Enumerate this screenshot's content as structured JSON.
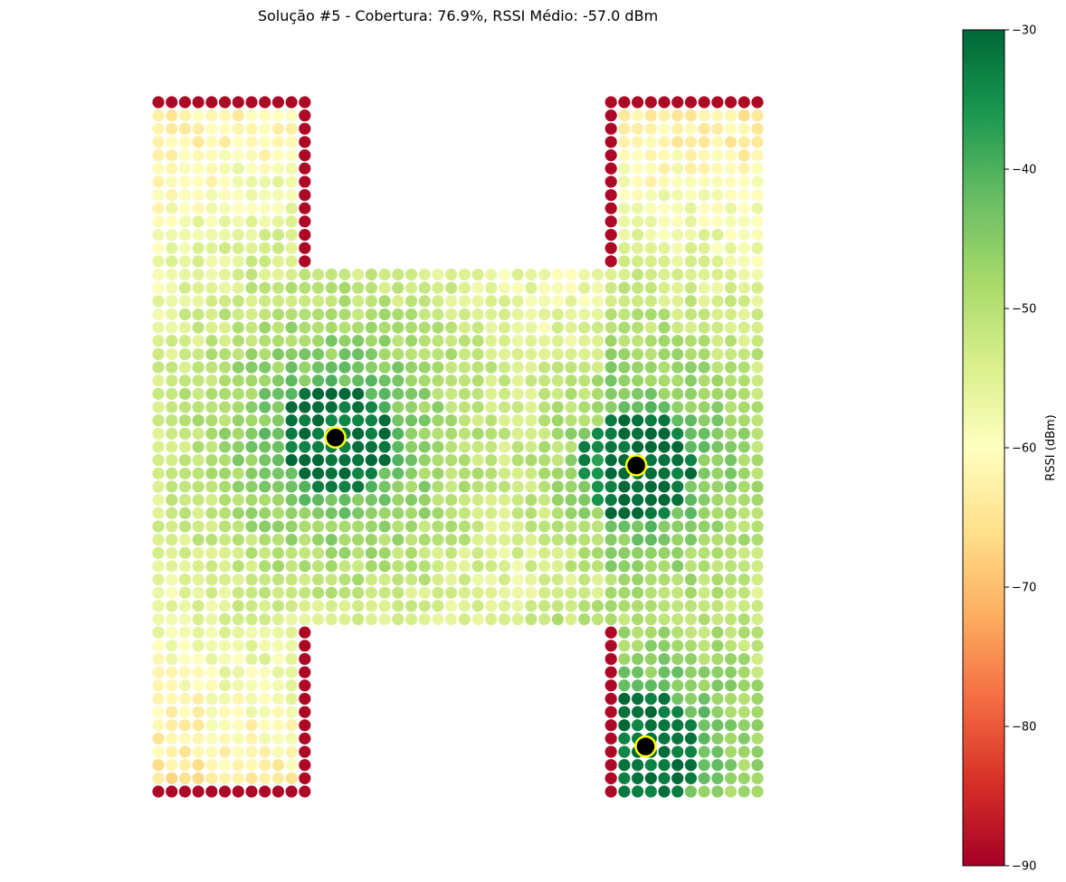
{
  "chart_data": {
    "type": "heatmap",
    "title": "Solução #5 - Cobertura: 76.9%, RSSI Médio: -57.0 dBm",
    "colorbar": {
      "label": "RSSI (dBm)",
      "range": [
        -90,
        -30
      ],
      "ticks": [
        -30,
        -40,
        -50,
        -60,
        -70,
        -80,
        -90
      ],
      "tick_labels": [
        "−30",
        "−40",
        "−50",
        "−60",
        "−70",
        "−80",
        "−90"
      ],
      "colormap": "RdYlGn",
      "stops": [
        "#a50026",
        "#d73027",
        "#f46d43",
        "#fdae61",
        "#fee08b",
        "#ffffbf",
        "#d9ef8b",
        "#a6d96a",
        "#66bd63",
        "#1a9850",
        "#006837"
      ]
    },
    "grid": {
      "columns": 46,
      "rows": 53,
      "shape": "H",
      "wall_rssi": -89
    },
    "floor_regions": {
      "left_column": {
        "cols": [
          0,
          11
        ],
        "rows": [
          0,
          52
        ]
      },
      "right_column": {
        "cols": [
          34,
          45
        ],
        "rows": [
          0,
          52
        ]
      },
      "crossbar": {
        "cols": [
          12,
          33
        ],
        "rows": [
          13,
          39
        ]
      }
    },
    "access_points": [
      {
        "col": 13.3,
        "row": 25.3,
        "power": -30,
        "marker": "black-circle-yellow-edge"
      },
      {
        "col": 35.9,
        "row": 27.4,
        "power": -30,
        "marker": "black-circle-yellow-edge"
      },
      {
        "col": 36.6,
        "row": 48.6,
        "power": -30,
        "marker": "black-circle-yellow-edge"
      }
    ],
    "summary": {
      "coverage": 76.9,
      "mean_rssi": -57.0,
      "solution_number": 5
    },
    "marker_colors": {
      "ap_fill": "#000000",
      "ap_edge": "#ffff00"
    }
  }
}
